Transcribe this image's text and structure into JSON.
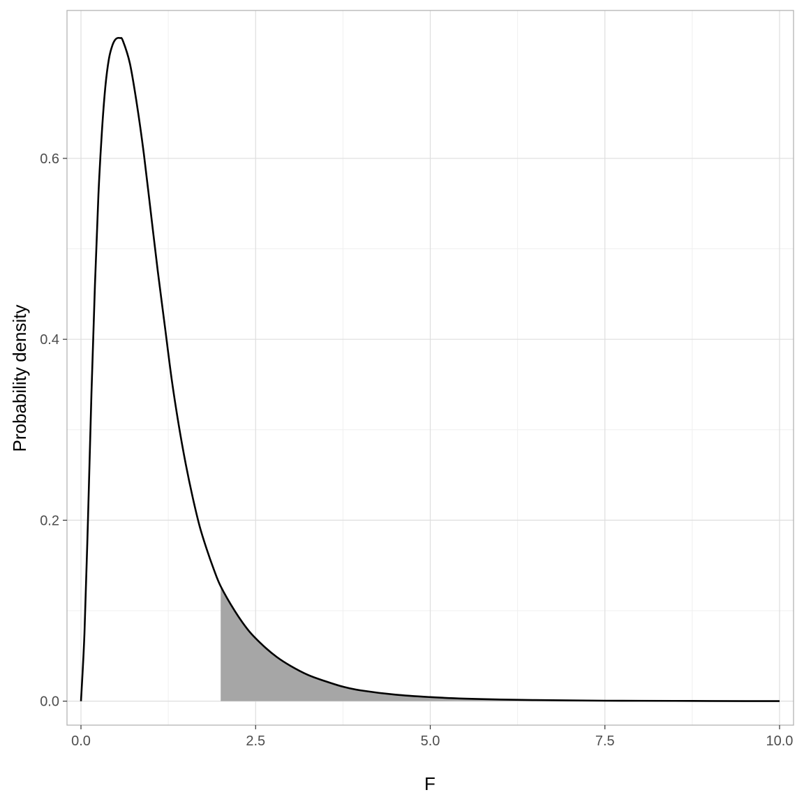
{
  "chart_data": {
    "type": "area",
    "title": "",
    "xlabel": "F",
    "ylabel": "Probability density",
    "xlim": [
      -0.2,
      10.2
    ],
    "ylim": [
      -0.0265,
      0.7635
    ],
    "x_ticks": [
      0.0,
      2.5,
      5.0,
      7.5,
      10.0
    ],
    "x_tick_labels": [
      "0.0",
      "2.5",
      "5.0",
      "7.5",
      "10.0"
    ],
    "y_ticks": [
      0.0,
      0.2,
      0.4,
      0.6
    ],
    "y_tick_labels": [
      "0.0",
      "0.2",
      "0.4",
      "0.6"
    ],
    "grid": true,
    "series": [
      {
        "type": "line",
        "x": [
          0,
          0.05,
          0.1,
          0.15,
          0.2,
          0.25,
          0.3,
          0.35,
          0.4,
          0.45,
          0.5,
          0.56,
          0.6,
          0.7,
          0.8,
          0.9,
          1.0,
          1.1,
          1.2,
          1.3,
          1.4,
          1.5,
          1.6,
          1.7,
          1.8,
          1.9,
          2.0,
          2.2,
          2.4,
          2.6,
          2.8,
          3.0,
          3.25,
          3.5,
          3.75,
          4.0,
          4.5,
          5.0,
          5.5,
          6.0,
          6.5,
          7.0,
          7.5,
          8.0,
          8.5,
          9.0,
          9.5,
          10.0
        ],
        "y": [
          0,
          0.075,
          0.2,
          0.34,
          0.46,
          0.56,
          0.63,
          0.68,
          0.71,
          0.725,
          0.732,
          0.733,
          0.73,
          0.705,
          0.66,
          0.605,
          0.54,
          0.475,
          0.415,
          0.355,
          0.305,
          0.262,
          0.225,
          0.193,
          0.168,
          0.146,
          0.127,
          0.1,
          0.078,
          0.062,
          0.049,
          0.039,
          0.029,
          0.022,
          0.016,
          0.012,
          0.0072,
          0.0045,
          0.0028,
          0.0018,
          0.0012,
          0.0008,
          0.0005,
          0.0004,
          0.0003,
          0.0002,
          0.0001,
          0.0001
        ]
      },
      {
        "type": "area",
        "x_from": 2.0,
        "x_to": 10.0,
        "fill": "#a6a6a6"
      }
    ],
    "colors": {
      "line": "#000000",
      "area": "#a6a6a6",
      "panel_border": "#b3b3b3",
      "grid_major": "#dedede",
      "grid_minor": "#efefef"
    }
  }
}
